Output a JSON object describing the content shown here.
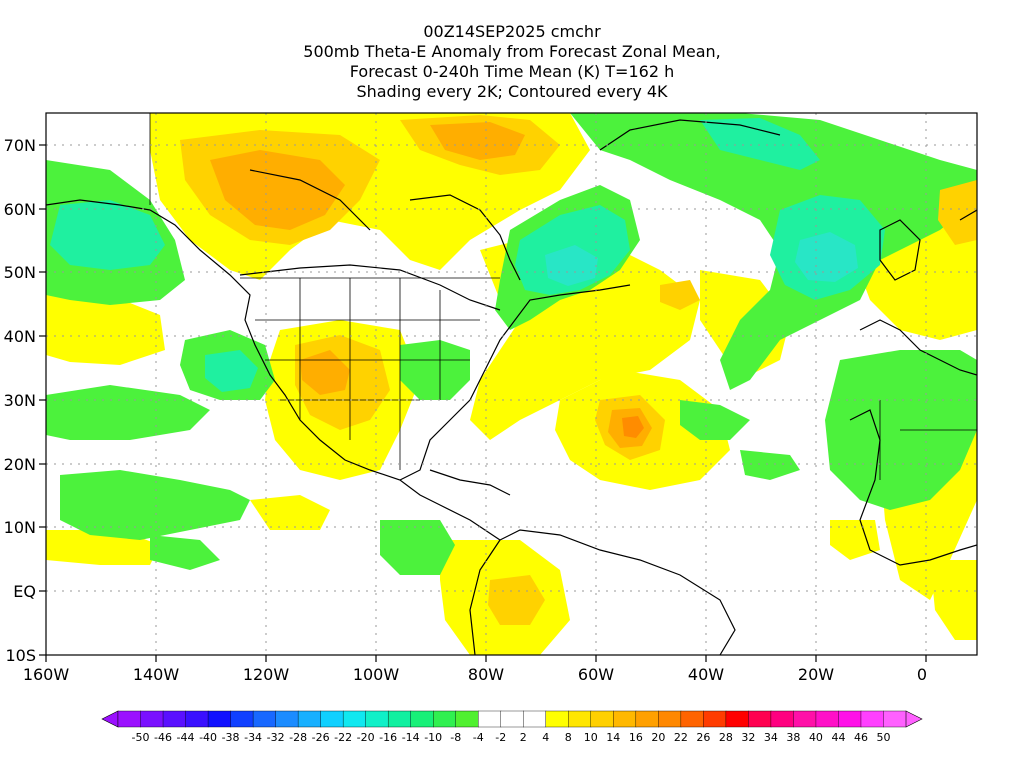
{
  "title": {
    "lines": [
      "00Z14SEP2025 cmchr",
      "500mb Theta-E Anomaly from Forecast Zonal Mean,",
      "Forecast 0-240h Time Mean (K) T=162 h",
      "Shading every 2K; Contoured every 4K"
    ]
  },
  "axes": {
    "x_ticks": [
      "160W",
      "140W",
      "120W",
      "100W",
      "80W",
      "60W",
      "40W",
      "20W",
      "0"
    ],
    "y_ticks": [
      "70N",
      "60N",
      "50N",
      "40N",
      "30N",
      "20N",
      "10N",
      "EQ",
      "10S"
    ]
  },
  "colorbar": {
    "labels": [
      "-50",
      "-46",
      "-44",
      "-40",
      "-38",
      "-34",
      "-32",
      "-28",
      "-26",
      "-22",
      "-20",
      "-16",
      "-14",
      "-10",
      "-8",
      "-4",
      "-2",
      "2",
      "4",
      "8",
      "10",
      "14",
      "16",
      "20",
      "22",
      "26",
      "28",
      "32",
      "34",
      "38",
      "40",
      "44",
      "46",
      "50"
    ],
    "colors": [
      "#9b10ff",
      "#7a10ff",
      "#5a10ff",
      "#3a10ff",
      "#1010ff",
      "#1040ff",
      "#1868ff",
      "#1c8cff",
      "#18b0ff",
      "#10d0ff",
      "#10e8f0",
      "#10f0c8",
      "#10f0a0",
      "#18f078",
      "#30f050",
      "#50f030",
      "#ffffff",
      "#ffffff",
      "#ffffff",
      "#ffff00",
      "#ffe600",
      "#ffd000",
      "#ffb800",
      "#ffa000",
      "#ff8800",
      "#ff6400",
      "#ff3c00",
      "#ff0000",
      "#ff0050",
      "#ff0080",
      "#ff10a8",
      "#ff10c8",
      "#ff10e8",
      "#ff40ff",
      "#ff60ff"
    ]
  },
  "map": {
    "colors": {
      "yellow": "#ffff00",
      "lightorange": "#ffd200",
      "orange": "#ffae00",
      "darkorange": "#ff8c00",
      "green": "#4cf23c",
      "teal": "#1ff0a0",
      "cyan": "#28e6c6",
      "coast": "#000000"
    }
  }
}
